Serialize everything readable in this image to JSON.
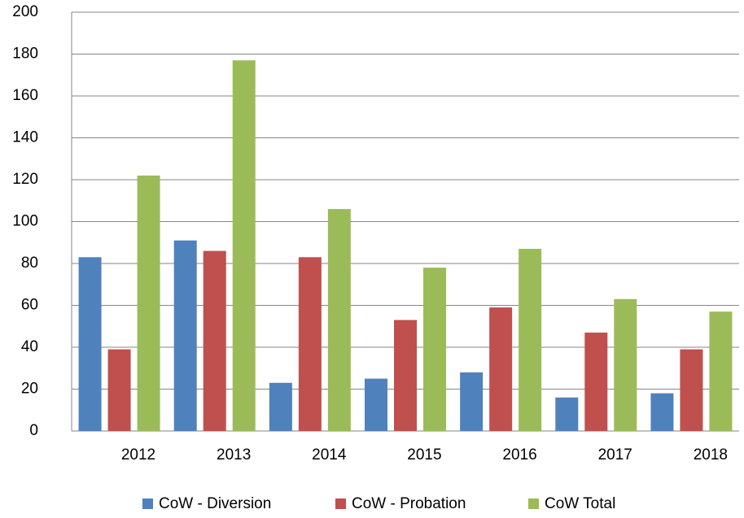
{
  "chart_data": {
    "type": "bar",
    "categories": [
      "2012",
      "2013",
      "2014",
      "2015",
      "2016",
      "2017",
      "2018"
    ],
    "series": [
      {
        "name": "CoW - Diversion",
        "color": "#4f81bd",
        "values": [
          83,
          91,
          23,
          25,
          28,
          16,
          18
        ]
      },
      {
        "name": "CoW - Probation",
        "color": "#c0504d",
        "values": [
          39,
          86,
          83,
          53,
          59,
          47,
          39
        ]
      },
      {
        "name": "CoW Total",
        "color": "#9bbb59",
        "values": [
          122,
          177,
          106,
          78,
          87,
          63,
          57
        ]
      }
    ],
    "ylim": [
      0,
      200
    ],
    "yticks": [
      0,
      20,
      40,
      60,
      80,
      100,
      120,
      140,
      160,
      180,
      200
    ],
    "grid": true,
    "legend": "bottom"
  }
}
